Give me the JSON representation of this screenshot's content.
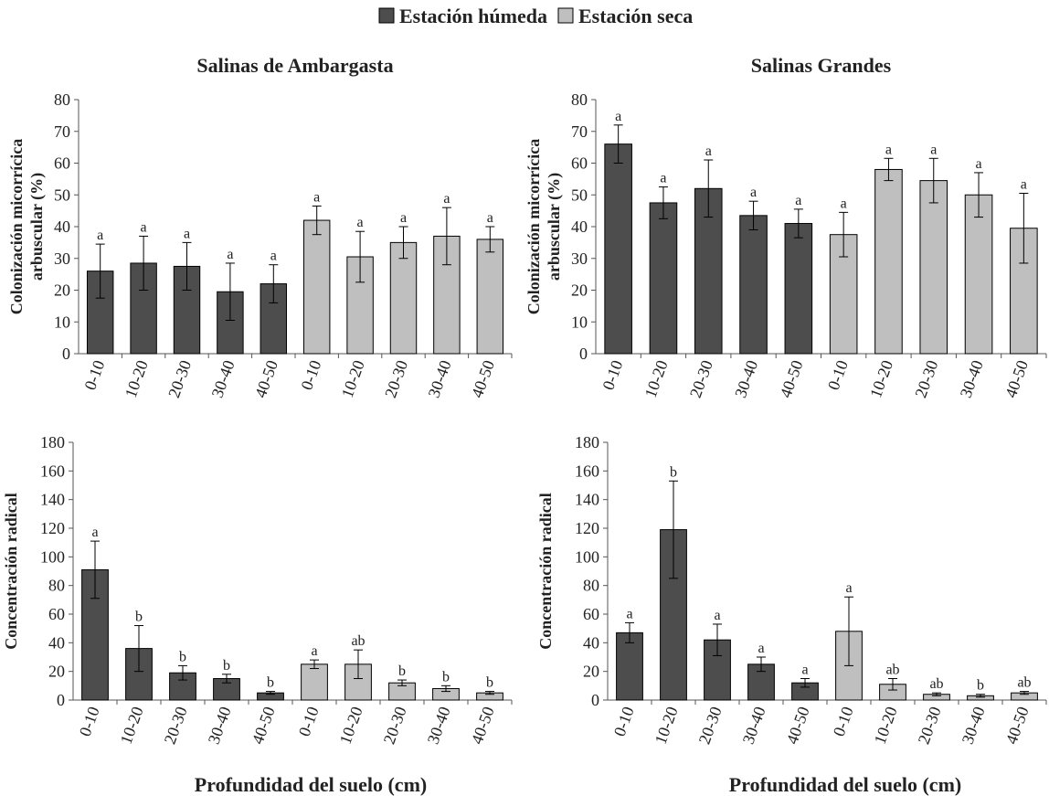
{
  "legend": [
    {
      "name": "Estación húmeda",
      "color": "#4d4d4d"
    },
    {
      "name": "Estación seca",
      "color": "#bfbfbf"
    }
  ],
  "chart_data": [
    {
      "type": "bar",
      "title": "Salinas de Ambargasta",
      "ylabel": [
        "Colonización micorrícica",
        "arbuscular (%)"
      ],
      "categories": [
        "0-10",
        "10-20",
        "20-30",
        "30-40",
        "40-50"
      ],
      "ylim": [
        0,
        80
      ],
      "yticks": [
        0,
        10,
        20,
        30,
        40,
        50,
        60,
        70,
        80
      ],
      "series": [
        {
          "values": [
            26,
            28.5,
            27.5,
            19.5,
            22
          ],
          "errors": [
            8.5,
            8.5,
            7.5,
            9,
            6
          ],
          "annotations": [
            "a",
            "a",
            "a",
            "a",
            "a"
          ]
        },
        {
          "values": [
            42,
            30.5,
            35,
            37,
            36
          ],
          "errors": [
            4.5,
            8,
            5,
            9,
            4
          ],
          "annotations": [
            "a",
            "a",
            "a",
            "a",
            "a"
          ]
        }
      ]
    },
    {
      "type": "bar",
      "title": "Salinas Grandes",
      "ylabel": [
        "Colonización micorrícica",
        "arbuscular (%)"
      ],
      "categories": [
        "0-10",
        "10-20",
        "20-30",
        "30-40",
        "40-50"
      ],
      "ylim": [
        0,
        80
      ],
      "yticks": [
        0,
        10,
        20,
        30,
        40,
        50,
        60,
        70,
        80
      ],
      "series": [
        {
          "values": [
            66,
            47.5,
            52,
            43.5,
            41
          ],
          "errors": [
            6,
            5,
            9,
            4.5,
            4.5
          ],
          "annotations": [
            "a",
            "a",
            "a",
            "a",
            "a"
          ]
        },
        {
          "values": [
            37.5,
            58,
            54.5,
            50,
            39.5
          ],
          "errors": [
            7,
            3.5,
            7,
            7,
            11
          ],
          "annotations": [
            "a",
            "a",
            "a",
            "a",
            "a"
          ]
        }
      ]
    },
    {
      "type": "bar",
      "ylabel": [
        "Concentración radical"
      ],
      "xlabel": "Profundidad del suelo (cm)",
      "categories": [
        "0-10",
        "10-20",
        "20-30",
        "30-40",
        "40-50"
      ],
      "ylim": [
        0,
        180
      ],
      "yticks": [
        0,
        20,
        40,
        60,
        80,
        100,
        120,
        140,
        160,
        180
      ],
      "series": [
        {
          "values": [
            91,
            36,
            19,
            15,
            5
          ],
          "errors": [
            20,
            16,
            5,
            3,
            1
          ],
          "annotations": [
            "a",
            "b",
            "b",
            "b",
            "b"
          ]
        },
        {
          "values": [
            25,
            25,
            12,
            8,
            5
          ],
          "errors": [
            3,
            10,
            2,
            2,
            1
          ],
          "annotations": [
            "a",
            "ab",
            "b",
            "b",
            "b"
          ]
        }
      ]
    },
    {
      "type": "bar",
      "ylabel": [
        "Concentración radical"
      ],
      "xlabel": "Profundidad del suelo (cm)",
      "categories": [
        "0-10",
        "10-20",
        "20-30",
        "30-40",
        "40-50"
      ],
      "ylim": [
        0,
        180
      ],
      "yticks": [
        0,
        20,
        40,
        60,
        80,
        100,
        120,
        140,
        160,
        180
      ],
      "series": [
        {
          "values": [
            47,
            119,
            42,
            25,
            12
          ],
          "errors": [
            7,
            34,
            11,
            5,
            3
          ],
          "annotations": [
            "a",
            "b",
            "a",
            "a",
            "a"
          ]
        },
        {
          "values": [
            48,
            11,
            4,
            3,
            5
          ],
          "errors": [
            24,
            4,
            1,
            1,
            1
          ],
          "annotations": [
            "a",
            "ab",
            "ab",
            "b",
            "ab"
          ]
        }
      ]
    }
  ]
}
